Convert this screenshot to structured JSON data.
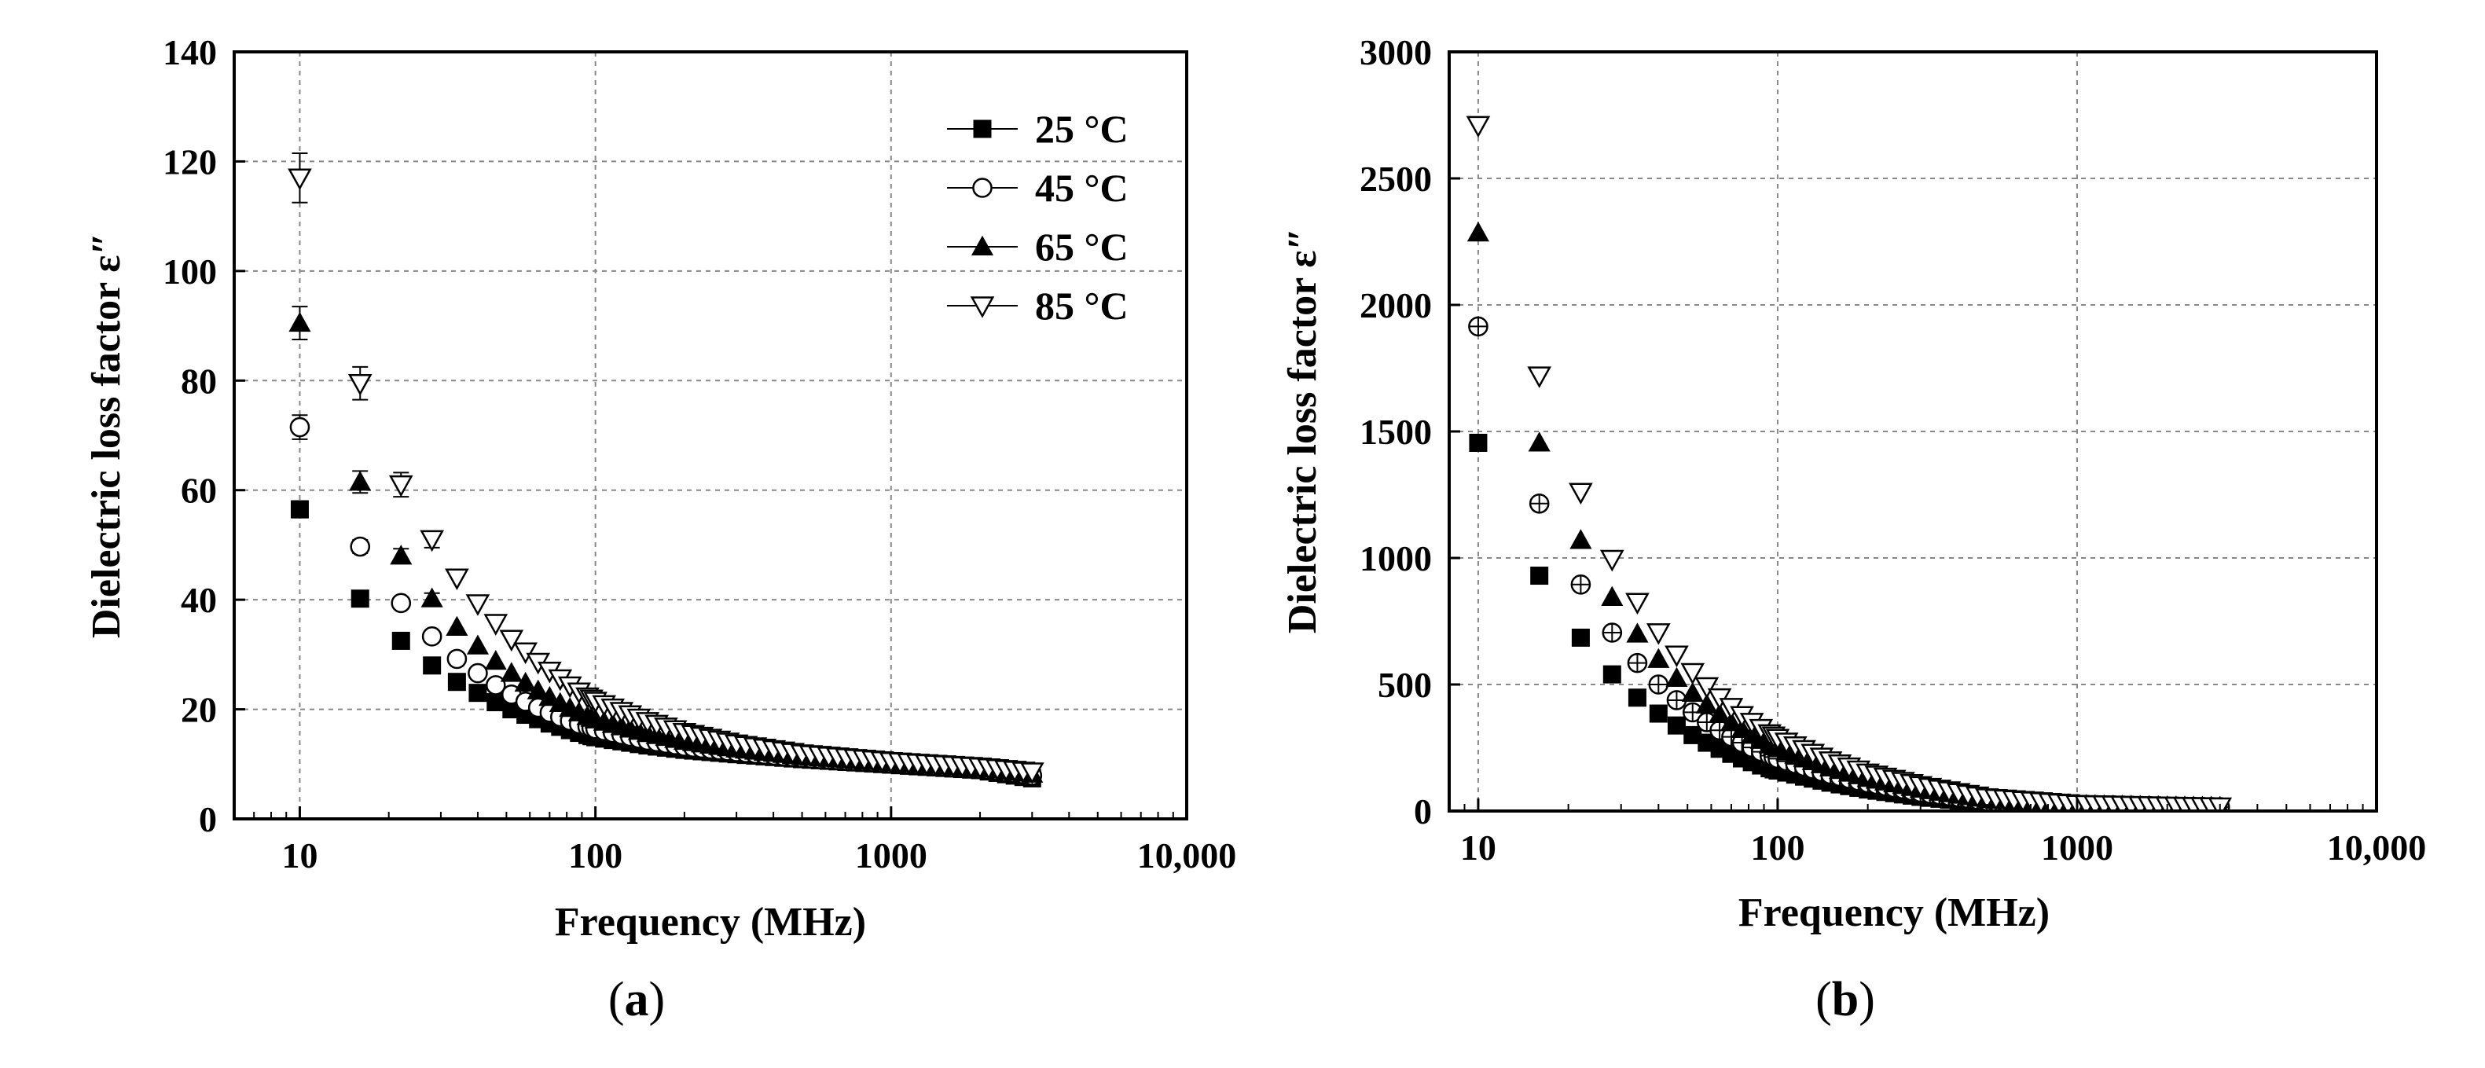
{
  "chart_data": [
    {
      "type": "scatter",
      "panel_label": "a",
      "title": "",
      "xlabel": "Frequency (MHz)",
      "ylabel": "Dielectric loss factor ε″",
      "xscale": "log",
      "xlim": [
        6,
        10000
      ],
      "ylim": [
        0,
        140
      ],
      "xticks": [
        10,
        100,
        1000,
        10000
      ],
      "xtick_labels": [
        "10",
        "100",
        "1000",
        "10,000"
      ],
      "yticks": [
        0,
        20,
        40,
        60,
        80,
        100,
        120,
        140
      ],
      "ytick_labels": [
        "0",
        "20",
        "40",
        "60",
        "80",
        "100",
        "120",
        "140"
      ],
      "grid": true,
      "legend_position": "top-right",
      "series": [
        {
          "name": "25 °C",
          "marker": "square-filled",
          "x": [
            10,
            16,
            22,
            28,
            34,
            40,
            46,
            52,
            58,
            64,
            70,
            76,
            82,
            88,
            94,
            100,
            150,
            200,
            300,
            500,
            1000,
            2000,
            3000
          ],
          "y": [
            56.5,
            40.2,
            32.5,
            28,
            25,
            23,
            21.3,
            20,
            19,
            18.2,
            17.4,
            16.8,
            16.2,
            15.7,
            15.3,
            14.9,
            13.4,
            12.6,
            11.8,
            10.9,
            9.9,
            8.9,
            7.4
          ],
          "err": [
            1.5,
            1.0,
            0.8,
            0,
            0,
            0,
            0,
            0,
            0,
            0,
            0,
            0,
            0,
            0,
            0,
            0,
            0,
            0,
            0,
            0,
            0,
            0,
            0
          ]
        },
        {
          "name": "45 °C",
          "marker": "circle-open",
          "x": [
            10,
            16,
            22,
            28,
            34,
            40,
            46,
            52,
            58,
            64,
            70,
            76,
            82,
            88,
            94,
            100,
            150,
            200,
            300,
            500,
            1000,
            2000,
            3000
          ],
          "y": [
            71.5,
            49.7,
            39.4,
            33.3,
            29.2,
            26.6,
            24.4,
            22.7,
            21.4,
            20.3,
            19.4,
            18.6,
            17.9,
            17.3,
            16.8,
            16.4,
            14.3,
            13.2,
            12.2,
            11.1,
            10.1,
            9.1,
            7.9
          ],
          "err": [
            2.2,
            1.2,
            1.0,
            0.8,
            0,
            0,
            0,
            0,
            0,
            0,
            0,
            0,
            0,
            0,
            0,
            0,
            0,
            0,
            0,
            0,
            0,
            0,
            0
          ]
        },
        {
          "name": "65 °C",
          "marker": "triangle-up-filled",
          "x": [
            10,
            16,
            22,
            28,
            34,
            40,
            46,
            52,
            58,
            64,
            70,
            76,
            82,
            88,
            94,
            100,
            150,
            200,
            300,
            500,
            1000,
            2000,
            3000
          ],
          "y": [
            90.5,
            61.5,
            48,
            40.2,
            35,
            31.6,
            28.8,
            26.6,
            24.8,
            23.4,
            22.2,
            21.1,
            20.2,
            19.4,
            18.7,
            18.1,
            15.6,
            14.2,
            12.8,
            11.4,
            10.3,
            9.3,
            8.2
          ],
          "err": [
            3.0,
            2.0,
            1.3,
            1.0,
            0,
            0,
            0,
            0,
            0,
            0,
            0,
            0,
            0,
            0,
            0,
            0,
            0,
            0,
            0,
            0,
            0,
            0,
            0
          ]
        },
        {
          "name": "85 °C",
          "marker": "triangle-down-open",
          "x": [
            10,
            16,
            22,
            28,
            34,
            40,
            46,
            52,
            58,
            64,
            70,
            76,
            82,
            88,
            94,
            100,
            150,
            200,
            300,
            500,
            1000,
            2000,
            3000
          ],
          "y": [
            117,
            79.5,
            61,
            51,
            44,
            39.3,
            35.7,
            32.8,
            30.5,
            28.6,
            27,
            25.6,
            24.3,
            23.2,
            22.3,
            21.5,
            17.8,
            15.8,
            13.7,
            11.9,
            10.5,
            9.5,
            8.6
          ],
          "err": [
            4.5,
            3.0,
            2.2,
            1.5,
            0,
            0,
            0,
            0,
            0,
            0,
            0,
            0,
            0,
            0,
            0,
            0,
            0,
            0,
            0,
            0,
            0,
            0,
            0
          ]
        }
      ]
    },
    {
      "type": "scatter",
      "panel_label": "b",
      "title": "",
      "xlabel": "Frequency (MHz)",
      "ylabel": "Dielectric loss factor  ε″",
      "xscale": "log",
      "xlim": [
        8,
        10000
      ],
      "ylim": [
        0,
        3000
      ],
      "xticks": [
        10,
        100,
        1000,
        10000
      ],
      "xtick_labels": [
        "10",
        "100",
        "1000",
        "10,000"
      ],
      "yticks": [
        0,
        500,
        1000,
        1500,
        2000,
        2500,
        3000
      ],
      "ytick_labels": [
        "0",
        "500",
        "1000",
        "1500",
        "2000",
        "2500",
        "3000"
      ],
      "grid": true,
      "legend_position": "none",
      "series": [
        {
          "name": "25 °C",
          "marker": "square-filled",
          "x": [
            10,
            16,
            22,
            28,
            34,
            40,
            46,
            52,
            58,
            64,
            70,
            76,
            82,
            88,
            94,
            100,
            150,
            200,
            300,
            500,
            1000,
            2000,
            3000
          ],
          "y": [
            1455,
            930,
            685,
            540,
            448,
            385,
            338,
            300,
            270,
            246,
            226,
            208,
            193,
            180,
            169,
            160,
            112,
            85,
            56,
            30,
            18,
            16,
            15
          ],
          "err": []
        },
        {
          "name": "45 °C",
          "marker": "circle-crossed",
          "x": [
            10,
            16,
            22,
            28,
            34,
            40,
            46,
            52,
            58,
            64,
            70,
            76,
            82,
            88,
            94,
            100,
            150,
            200,
            300,
            500,
            1000,
            2000,
            3000
          ],
          "y": [
            1915,
            1215,
            895,
            705,
            585,
            500,
            438,
            390,
            351,
            319,
            293,
            270,
            251,
            234,
            219,
            207,
            144,
            110,
            73,
            39,
            21,
            17,
            15
          ],
          "err": []
        },
        {
          "name": "65 °C",
          "marker": "triangle-up-filled",
          "x": [
            10,
            16,
            22,
            28,
            34,
            40,
            46,
            52,
            58,
            64,
            70,
            76,
            82,
            88,
            94,
            100,
            150,
            200,
            300,
            500,
            1000,
            2000,
            3000
          ],
          "y": [
            2285,
            1455,
            1070,
            845,
            700,
            600,
            525,
            466,
            420,
            382,
            350,
            323,
            300,
            280,
            262,
            247,
            171,
            130,
            87,
            46,
            24,
            18,
            16
          ],
          "err": []
        },
        {
          "name": "85 °C",
          "marker": "triangle-down-open",
          "x": [
            10,
            16,
            22,
            28,
            34,
            40,
            46,
            52,
            58,
            64,
            70,
            76,
            82,
            88,
            94,
            100,
            150,
            200,
            300,
            500,
            1000,
            2000,
            3000
          ],
          "y": [
            2710,
            1720,
            1260,
            995,
            825,
            705,
            617,
            548,
            492,
            448,
            410,
            378,
            351,
            327,
            306,
            288,
            199,
            151,
            101,
            53,
            27,
            20,
            17
          ],
          "err": []
        }
      ]
    }
  ]
}
